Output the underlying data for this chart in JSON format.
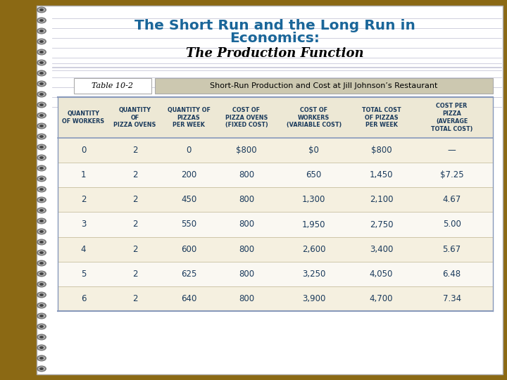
{
  "title_line1": "The Short Run and the Long Run in",
  "title_line2": "Economics:",
  "subtitle": "The Production Function",
  "table_label": "Table 10-2",
  "table_title": "Short-Run Production and Cost at Jill Johnson’s Restaurant",
  "col_headers": [
    "QUANTITY\nOF WORKERS",
    "QUANTITY\nOF\nPIZZA OVENS",
    "QUANTITY OF\nPIZZAS\nPER WEEK",
    "COST OF\nPIZZA OVENS\n(FIXED COST)",
    "COST OF\nWORKERS\n(VARIABLE COST)",
    "TOTAL COST\nOF PIZZAS\nPER WEEK",
    "COST PER\nPIZZA\n(AVERAGE\nTOTAL COST)"
  ],
  "rows": [
    [
      "0",
      "2",
      "0",
      "$800",
      "$0",
      "$800",
      "—"
    ],
    [
      "1",
      "2",
      "200",
      "800",
      "650",
      "1,450",
      "$7.25"
    ],
    [
      "2",
      "2",
      "450",
      "800",
      "1,300",
      "2,100",
      "4.67"
    ],
    [
      "3",
      "2",
      "550",
      "800",
      "1,950",
      "2,750",
      "5.00"
    ],
    [
      "4",
      "2",
      "600",
      "800",
      "2,600",
      "3,400",
      "5.67"
    ],
    [
      "5",
      "2",
      "625",
      "800",
      "3,250",
      "4,050",
      "6.48"
    ],
    [
      "6",
      "2",
      "640",
      "800",
      "3,900",
      "4,700",
      "7.34"
    ]
  ],
  "header_bg": "#ede8d5",
  "row_even_bg": "#f5f0e0",
  "row_odd_bg": "#faf8f2",
  "title_color": "#1a6699",
  "subtitle_color": "#000000",
  "text_color": "#1a3a5c",
  "outer_bg": "#8b6914",
  "page_bg": "#ffffff",
  "table_title_bg": "#ccc8b0",
  "line_color": "#c8c8d8",
  "table_border_color": "#8899bb",
  "spiral_outer": "#7a7a7a",
  "spiral_mid": "#b8b8b8",
  "spiral_inner": "#444444"
}
